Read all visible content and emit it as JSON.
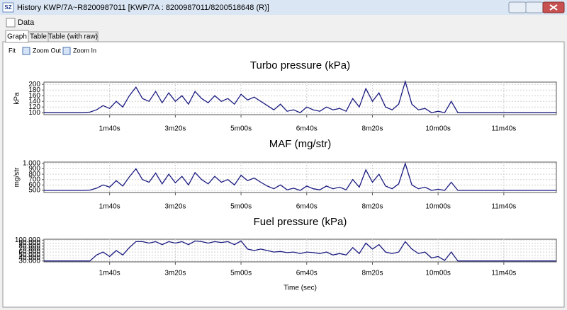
{
  "window": {
    "icon_text": "SZ",
    "title": "History KWP/7A~R8200987011 [KWP/7A : 8200987011/8200518648 (R)]",
    "menu": "Data",
    "tabs": [
      "Graph",
      "Table",
      "Table (with raw)"
    ],
    "toolbar": [
      "Fit",
      "Zoom Out",
      "Zoom In"
    ]
  },
  "chart_data": [
    {
      "type": "line",
      "title": "Turbo pressure (kPa)",
      "y_label": "kPa",
      "color": "#1a1a80",
      "grid": true,
      "xlim": [
        0,
        780
      ],
      "xticks": [
        {
          "value": 100,
          "label": "1m40s"
        },
        {
          "value": 200,
          "label": "3m20s"
        },
        {
          "value": 300,
          "label": "5m00s"
        },
        {
          "value": 400,
          "label": "6m40s"
        },
        {
          "value": 500,
          "label": "8m20s"
        },
        {
          "value": 600,
          "label": "10m00s"
        },
        {
          "value": 700,
          "label": "11m40s"
        }
      ],
      "ylim": [
        93,
        208
      ],
      "yticks": [
        100,
        120,
        140,
        160,
        180,
        200
      ],
      "x": [
        0,
        10,
        20,
        30,
        40,
        50,
        60,
        70,
        80,
        90,
        100,
        110,
        120,
        130,
        140,
        150,
        160,
        170,
        180,
        190,
        200,
        210,
        220,
        230,
        240,
        250,
        260,
        270,
        280,
        290,
        300,
        310,
        320,
        330,
        340,
        350,
        360,
        370,
        380,
        390,
        400,
        410,
        420,
        430,
        440,
        450,
        460,
        470,
        480,
        490,
        500,
        510,
        520,
        530,
        540,
        550,
        560,
        570,
        580,
        590,
        600,
        610,
        620,
        630,
        640,
        650,
        660,
        670,
        680,
        690,
        700,
        710,
        720,
        730,
        740,
        750,
        760,
        770,
        780
      ],
      "values": [
        100,
        100,
        100,
        100,
        100,
        100,
        100,
        102,
        110,
        125,
        115,
        140,
        120,
        160,
        190,
        150,
        140,
        175,
        135,
        170,
        140,
        160,
        130,
        175,
        150,
        135,
        160,
        140,
        150,
        130,
        165,
        145,
        155,
        140,
        125,
        110,
        130,
        105,
        110,
        100,
        120,
        110,
        105,
        120,
        110,
        115,
        105,
        150,
        120,
        185,
        140,
        170,
        120,
        110,
        130,
        210,
        130,
        110,
        115,
        100,
        105,
        100,
        140,
        100,
        100,
        100,
        100,
        100,
        100,
        100,
        100,
        100,
        100,
        100,
        100,
        100,
        100,
        100,
        100
      ]
    },
    {
      "type": "line",
      "title": "MAF (mg/str)",
      "y_label": "mg/str",
      "color": "#1a1a80",
      "grid": true,
      "xlim": [
        0,
        780
      ],
      "xticks": [
        {
          "value": 100,
          "label": "1m40s"
        },
        {
          "value": 200,
          "label": "3m20s"
        },
        {
          "value": 300,
          "label": "5m00s"
        },
        {
          "value": 400,
          "label": "6m40s"
        },
        {
          "value": 500,
          "label": "8m20s"
        },
        {
          "value": 600,
          "label": "10m00s"
        },
        {
          "value": 700,
          "label": "11m40s"
        }
      ],
      "ylim": [
        460,
        1025
      ],
      "yticks": [
        500,
        600,
        700,
        800,
        900,
        {
          "value": 1000,
          "label": "1.000"
        }
      ],
      "x": [
        0,
        10,
        20,
        30,
        40,
        50,
        60,
        70,
        80,
        90,
        100,
        110,
        120,
        130,
        140,
        150,
        160,
        170,
        180,
        190,
        200,
        210,
        220,
        230,
        240,
        250,
        260,
        270,
        280,
        290,
        300,
        310,
        320,
        330,
        340,
        350,
        360,
        370,
        380,
        390,
        400,
        410,
        420,
        430,
        440,
        450,
        460,
        470,
        480,
        490,
        500,
        510,
        520,
        530,
        540,
        550,
        560,
        570,
        580,
        590,
        600,
        610,
        620,
        630,
        640,
        650,
        660,
        670,
        680,
        690,
        700,
        710,
        720,
        730,
        740,
        750,
        760,
        770,
        780
      ],
      "values": [
        500,
        500,
        500,
        500,
        500,
        500,
        500,
        505,
        540,
        600,
        560,
        680,
        580,
        750,
        900,
        700,
        650,
        820,
        620,
        800,
        640,
        760,
        600,
        830,
        700,
        620,
        760,
        650,
        700,
        600,
        780,
        680,
        730,
        650,
        580,
        530,
        600,
        510,
        540,
        500,
        580,
        530,
        510,
        580,
        530,
        560,
        510,
        700,
        560,
        880,
        650,
        800,
        580,
        530,
        620,
        1000,
        600,
        530,
        560,
        500,
        520,
        500,
        650,
        500,
        500,
        500,
        500,
        500,
        500,
        500,
        500,
        500,
        500,
        500,
        500,
        500,
        500,
        500,
        500
      ]
    },
    {
      "type": "line",
      "title": "Fuel pressure (kPa)",
      "x_label": "Time (sec)",
      "color": "#1a1a80",
      "grid": true,
      "xlim": [
        0,
        780
      ],
      "xticks": [
        {
          "value": 100,
          "label": "1m40s"
        },
        {
          "value": 200,
          "label": "3m20s"
        },
        {
          "value": 300,
          "label": "5m00s"
        },
        {
          "value": 400,
          "label": "6m40s"
        },
        {
          "value": 500,
          "label": "8m20s"
        },
        {
          "value": 600,
          "label": "10m00s"
        },
        {
          "value": 700,
          "label": "11m40s"
        }
      ],
      "ylim": [
        27000,
        103000
      ],
      "yticks": [
        {
          "value": 30000,
          "label": "30.000"
        },
        {
          "value": 40000,
          "label": "40.000"
        },
        {
          "value": 50000,
          "label": "50.000"
        },
        {
          "value": 60000,
          "label": "60.000"
        },
        {
          "value": 70000,
          "label": "70.000"
        },
        {
          "value": 80000,
          "label": "80.000"
        },
        {
          "value": 90000,
          "label": "90.000"
        },
        {
          "value": 100000,
          "label": "100.000"
        }
      ],
      "x": [
        0,
        10,
        20,
        30,
        40,
        50,
        60,
        70,
        80,
        90,
        100,
        110,
        120,
        130,
        140,
        150,
        160,
        170,
        180,
        190,
        200,
        210,
        220,
        230,
        240,
        250,
        260,
        270,
        280,
        290,
        300,
        310,
        320,
        330,
        340,
        350,
        360,
        370,
        380,
        390,
        400,
        410,
        420,
        430,
        440,
        450,
        460,
        470,
        480,
        490,
        500,
        510,
        520,
        530,
        540,
        550,
        560,
        570,
        580,
        590,
        600,
        610,
        620,
        630,
        640,
        650,
        660,
        670,
        680,
        690,
        700,
        710,
        720,
        730,
        740,
        750,
        760,
        770,
        780
      ],
      "values": [
        30000,
        30000,
        30000,
        30000,
        30000,
        30000,
        30000,
        30000,
        50000,
        60000,
        45000,
        65000,
        50000,
        75000,
        95000,
        95000,
        90000,
        95000,
        85000,
        95000,
        90000,
        95000,
        85000,
        97000,
        95000,
        90000,
        95000,
        92000,
        95000,
        85000,
        97000,
        70000,
        65000,
        70000,
        65000,
        60000,
        62000,
        58000,
        60000,
        55000,
        60000,
        58000,
        55000,
        60000,
        50000,
        55000,
        50000,
        75000,
        55000,
        90000,
        70000,
        85000,
        60000,
        55000,
        60000,
        95000,
        70000,
        55000,
        60000,
        40000,
        45000,
        32000,
        60000,
        30000,
        30000,
        30000,
        30000,
        30000,
        30000,
        30000,
        30000,
        30000,
        30000,
        30000,
        30000,
        30000,
        30000,
        30000,
        30000
      ]
    }
  ]
}
